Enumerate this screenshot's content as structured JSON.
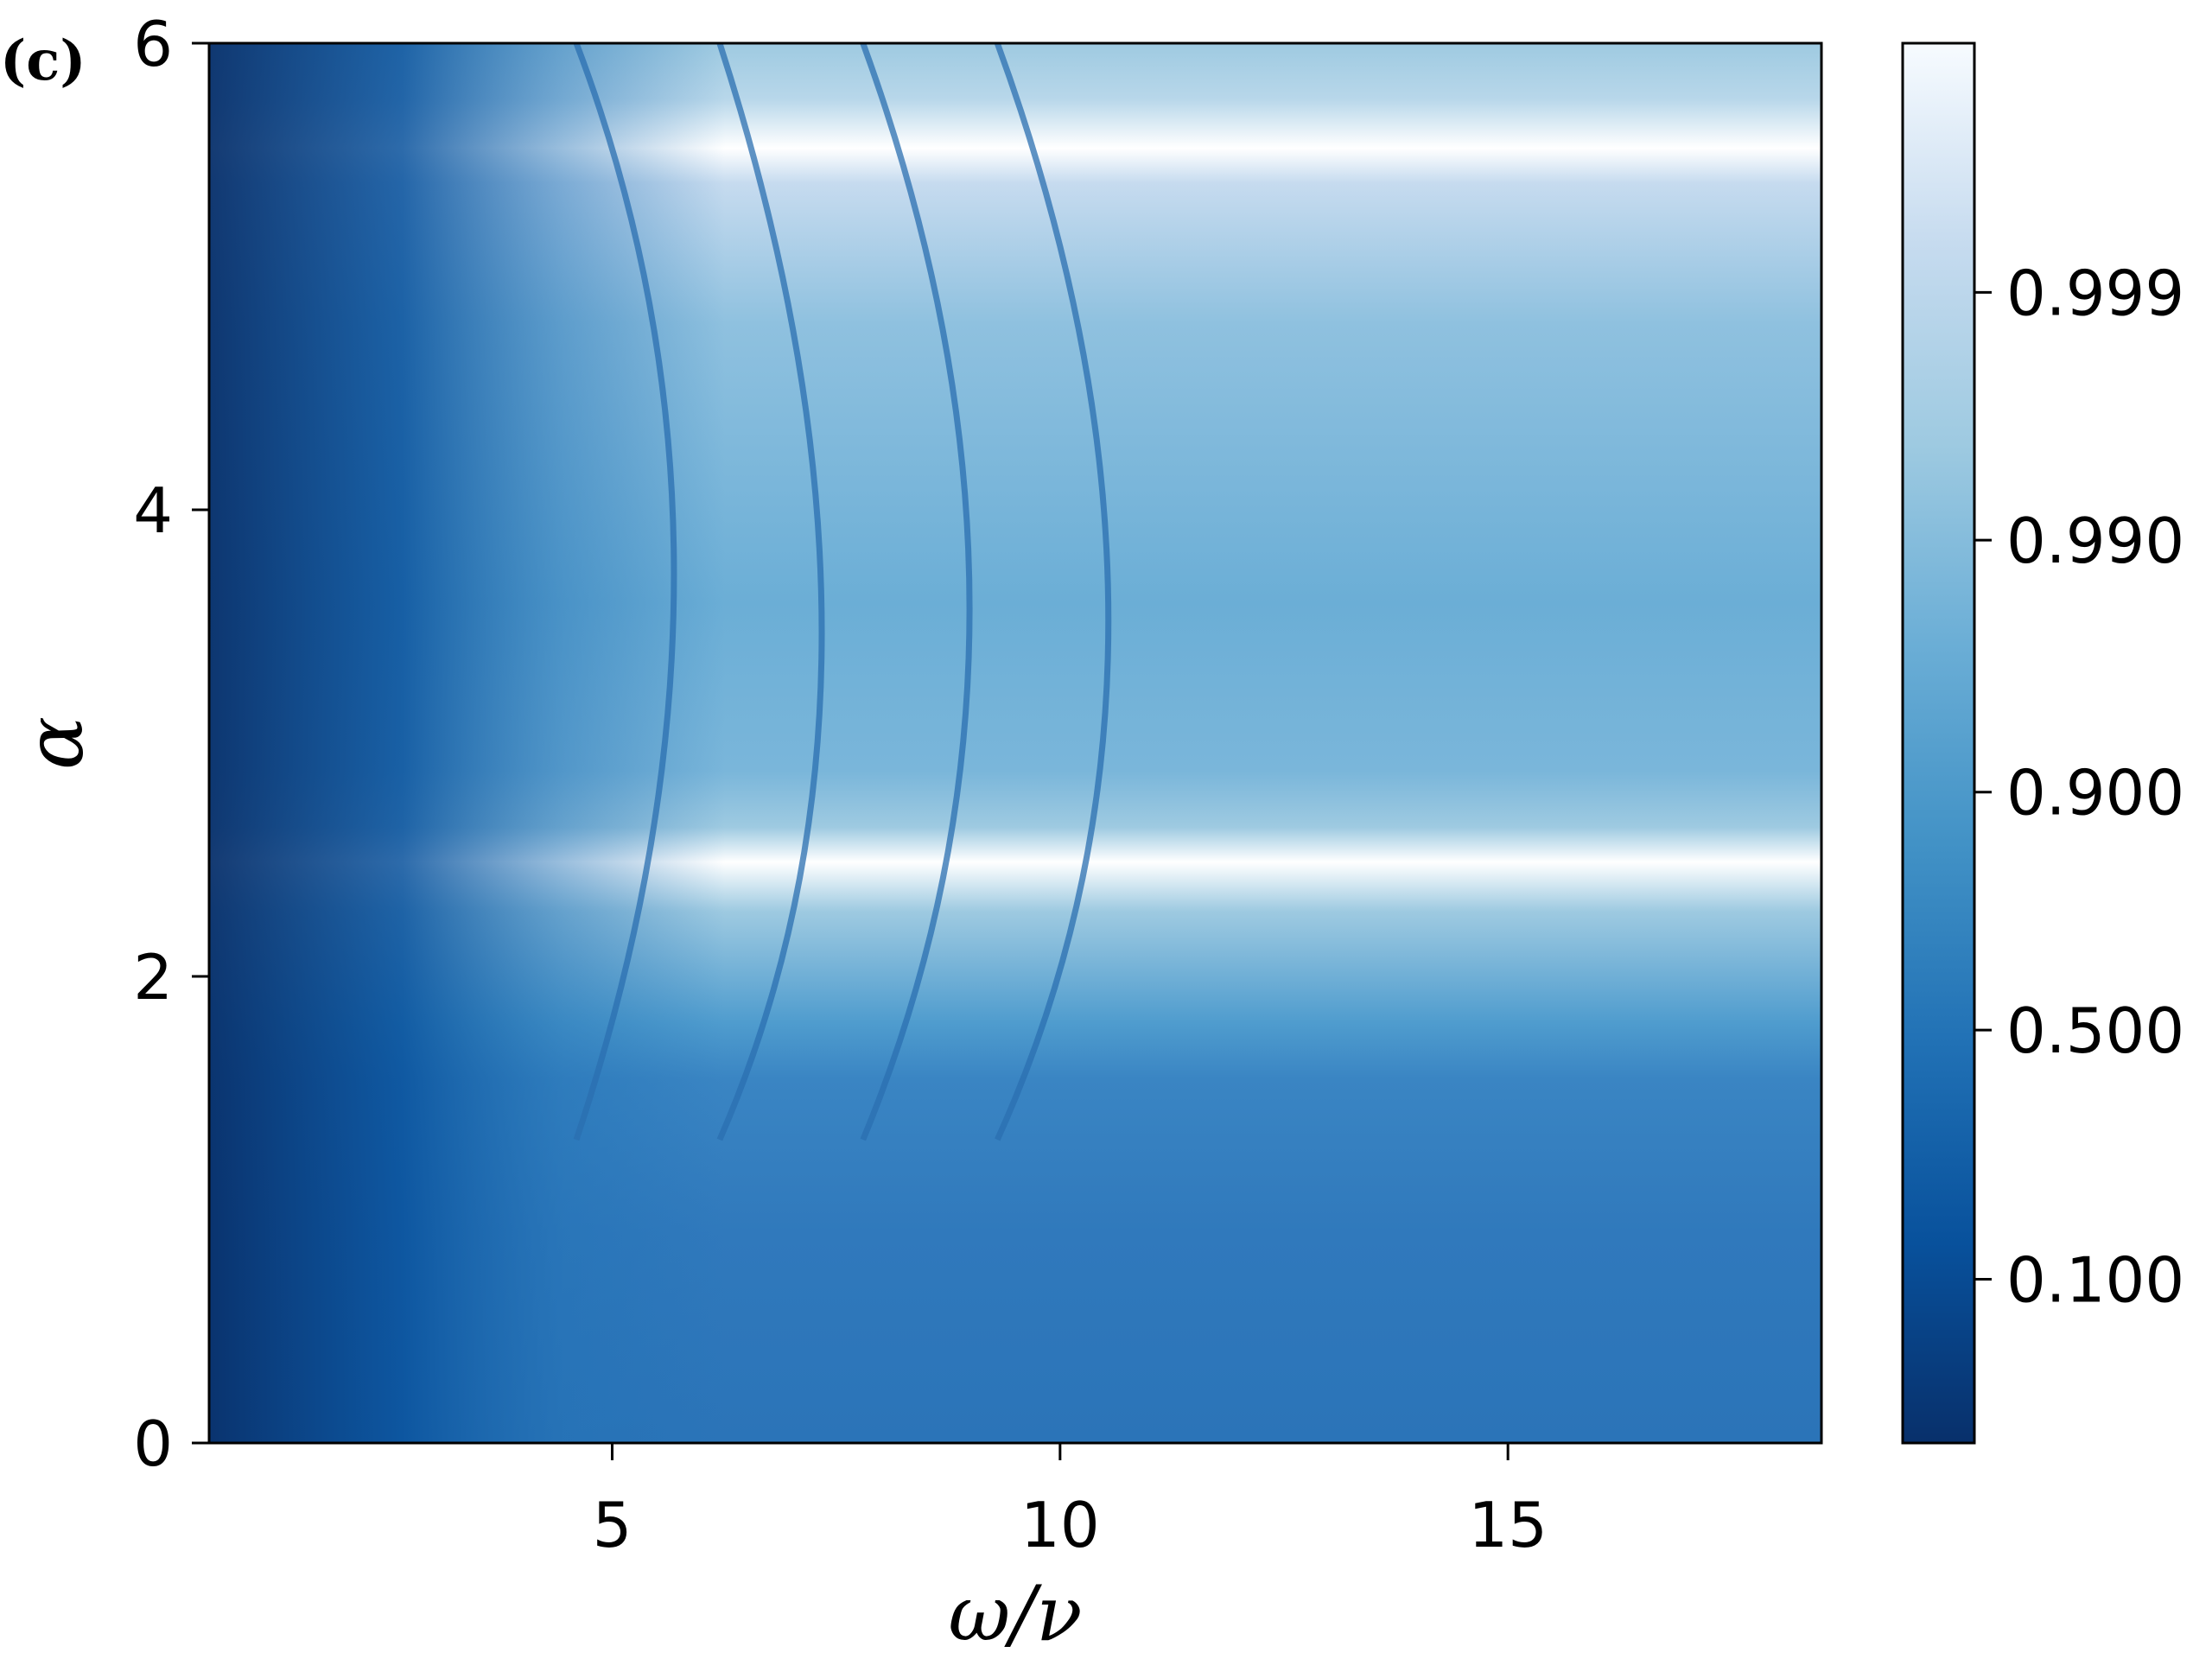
{
  "panel_label": "(c)",
  "colors": {
    "frame": "#000000",
    "colormap": [
      "#08306b",
      "#08519c",
      "#2171b5",
      "#4292c6",
      "#6baed6",
      "#9ecae1",
      "#c6dbef",
      "#f7fbff"
    ]
  },
  "chart_data": {
    "type": "heatmap",
    "title": "",
    "xlabel": "ω/ν",
    "ylabel": "α",
    "xlim": [
      0.5,
      18.5
    ],
    "ylim": [
      0,
      6
    ],
    "x_ticks": [
      {
        "value": 5,
        "label": "5"
      },
      {
        "value": 10,
        "label": "10"
      },
      {
        "value": 15,
        "label": "15"
      }
    ],
    "y_ticks": [
      {
        "value": 0,
        "label": "0"
      },
      {
        "value": 2,
        "label": "2"
      },
      {
        "value": 4,
        "label": "4"
      },
      {
        "value": 6,
        "label": "6"
      }
    ],
    "colorbar": {
      "scale": "nonlinear",
      "ticks": [
        {
          "fraction": 0.117,
          "label": "0.100"
        },
        {
          "fraction": 0.295,
          "label": "0.500"
        },
        {
          "fraction": 0.465,
          "label": "0.900"
        },
        {
          "fraction": 0.645,
          "label": "0.990"
        },
        {
          "fraction": 0.822,
          "label": "0.999"
        }
      ]
    },
    "bright_bands_alpha": [
      2.45,
      5.5
    ],
    "resonance_curves": [
      {
        "omega_apex": 6.2,
        "alpha_center": 3.8
      },
      {
        "omega_apex": 7.9,
        "alpha_center": 3.3
      },
      {
        "omega_apex": 9.6,
        "alpha_center": 3.5
      },
      {
        "omega_apex": 11.2,
        "alpha_center": 3.4
      }
    ]
  }
}
